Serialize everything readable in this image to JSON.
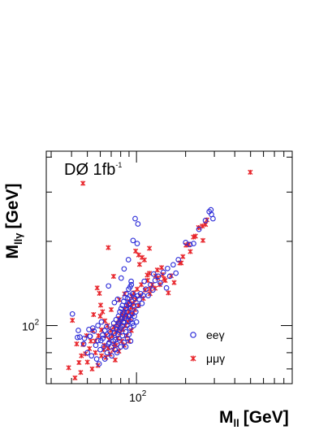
{
  "chart_data": {
    "type": "scatter",
    "title": "",
    "annotation": {
      "text": "DØ 1fb",
      "superscript": "-1"
    },
    "xlabel": {
      "main": "M",
      "sub": "ll",
      "unit": "[GeV]"
    },
    "ylabel": {
      "main": "M",
      "sub": "llγ",
      "unit": "[GeV]"
    },
    "xscale": "log",
    "yscale": "log",
    "xlim": [
      28,
      900
    ],
    "ylim": [
      62,
      420
    ],
    "xticks": [
      {
        "value": 100,
        "base": "10",
        "exp": "2"
      }
    ],
    "yticks": [
      {
        "value": 100,
        "base": "10",
        "exp": "2"
      }
    ],
    "grid": false,
    "legend_position": "lower-right",
    "colors": {
      "ee": "#2a2ad8",
      "mm": "#e8262c",
      "axis": "#000000"
    },
    "series": [
      {
        "name": "eeγ",
        "marker": "open-circle",
        "color": "#2a2ad8",
        "points": [
          [
            40.5,
            110.0
          ],
          [
            44.0,
            96.1
          ],
          [
            51.1,
            96.8
          ],
          [
            51.8,
            91.5
          ],
          [
            62.3,
            90.0
          ],
          [
            67.4,
            138.5
          ],
          [
            73.2,
            120.9
          ],
          [
            76.6,
            124.2
          ],
          [
            80.6,
            147.8
          ],
          [
            84.0,
            159.4
          ],
          [
            89.2,
            171.9
          ],
          [
            91.4,
            137.4
          ],
          [
            92.8,
            143.9
          ],
          [
            95.3,
            201.4
          ],
          [
            98.1,
            241.0
          ],
          [
            101.0,
            196.4
          ],
          [
            101.5,
            127.7
          ],
          [
            102.0,
            230.8
          ],
          [
            111.5,
            143.9
          ],
          [
            127.4,
            152.9
          ],
          [
            152.7,
            136.3
          ],
          [
            174.4,
            154.0
          ],
          [
            180.5,
            171.9
          ],
          [
            200.0,
            198.0
          ],
          [
            212.5,
            194.8
          ],
          [
            223.8,
            196.4
          ],
          [
            241.5,
            220.9
          ],
          [
            264.7,
            237.4
          ],
          [
            278.8,
            255.3
          ],
          [
            285.7,
            259.3
          ],
          [
            294.4,
            241.0
          ],
          [
            288.0,
            249.4
          ],
          [
            43.5,
            90.7
          ],
          [
            48.0,
            90.0
          ],
          [
            52.0,
            91.5
          ],
          [
            54.0,
            98.0
          ],
          [
            56.3,
            85.0
          ],
          [
            58.0,
            88.4
          ],
          [
            60.5,
            88.4
          ],
          [
            62.0,
            92.5
          ],
          [
            64.0,
            96.0
          ],
          [
            65.6,
            99.0
          ],
          [
            66.0,
            93.0
          ],
          [
            67.5,
            86.0
          ],
          [
            69.0,
            95.0
          ],
          [
            70.5,
            91.0
          ],
          [
            71.5,
            98.0
          ],
          [
            72.5,
            102.0
          ],
          [
            73.5,
            94.0
          ],
          [
            74.0,
            89.0
          ],
          [
            75.0,
            105.0
          ],
          [
            75.5,
            97.0
          ],
          [
            76.5,
            100.0
          ],
          [
            77.0,
            93.0
          ],
          [
            77.5,
            108.0
          ],
          [
            78.0,
            102.0
          ],
          [
            78.5,
            96.0
          ],
          [
            79.0,
            112.0
          ],
          [
            79.5,
            104.0
          ],
          [
            80.0,
            98.0
          ],
          [
            80.5,
            115.0
          ],
          [
            81.0,
            106.0
          ],
          [
            81.5,
            100.0
          ],
          [
            82.0,
            118.0
          ],
          [
            82.5,
            110.0
          ],
          [
            83.0,
            103.0
          ],
          [
            83.5,
            122.0
          ],
          [
            84.0,
            112.0
          ],
          [
            84.5,
            106.0
          ],
          [
            85.0,
            126.0
          ],
          [
            85.5,
            115.0
          ],
          [
            86.0,
            108.0
          ],
          [
            86.5,
            130.0
          ],
          [
            87.0,
            118.0
          ],
          [
            87.5,
            100.0
          ],
          [
            88.0,
            125.0
          ],
          [
            88.5,
            112.0
          ],
          [
            89.0,
            104.0
          ],
          [
            89.5,
            135.0
          ],
          [
            90.0,
            120.0
          ],
          [
            90.5,
            108.0
          ],
          [
            91.0,
            98.0
          ],
          [
            91.5,
            128.0
          ],
          [
            92.0,
            115.0
          ],
          [
            92.5,
            105.0
          ],
          [
            93.0,
            140.0
          ],
          [
            93.5,
            122.0
          ],
          [
            94.0,
            110.0
          ],
          [
            94.5,
            102.0
          ],
          [
            95.0,
            130.0
          ],
          [
            96.0,
            118.0
          ],
          [
            97.0,
            108.0
          ],
          [
            98.0,
            125.0
          ],
          [
            99.0,
            112.0
          ],
          [
            100.0,
            103.0
          ],
          [
            102.0,
            118.0
          ],
          [
            104.0,
            124.0
          ],
          [
            106.0,
            130.0
          ],
          [
            108.0,
            120.0
          ],
          [
            110.0,
            128.0
          ],
          [
            114.0,
            135.0
          ],
          [
            118.0,
            128.0
          ],
          [
            122.0,
            140.0
          ],
          [
            126.0,
            134.0
          ],
          [
            130.0,
            145.0
          ],
          [
            136.0,
            150.0
          ],
          [
            140.0,
            142.0
          ],
          [
            146.0,
            155.0
          ],
          [
            155.0,
            160.0
          ],
          [
            160.0,
            150.0
          ],
          [
            168.0,
            165.0
          ],
          [
            60.0,
            82.0
          ],
          [
            63.0,
            84.0
          ],
          [
            66.0,
            80.0
          ],
          [
            68.0,
            87.0
          ],
          [
            70.0,
            84.0
          ],
          [
            72.0,
            88.0
          ],
          [
            74.0,
            82.0
          ],
          [
            76.0,
            86.0
          ],
          [
            78.0,
            90.0
          ],
          [
            80.0,
            84.0
          ],
          [
            82.0,
            92.0
          ],
          [
            84.0,
            87.0
          ],
          [
            86.0,
            95.0
          ],
          [
            88.0,
            90.0
          ],
          [
            90.0,
            93.0
          ],
          [
            55.0,
            95.5
          ],
          [
            58.0,
            100.0
          ],
          [
            61.0,
            103.0
          ],
          [
            45.0,
            91.0
          ],
          [
            47.5,
            86.0
          ],
          [
            50.0,
            80.0
          ],
          [
            53.0,
            78.0
          ],
          [
            57.0,
            76.0
          ],
          [
            59.0,
            73.0
          ],
          [
            64.0,
            76.0
          ],
          [
            70.5,
            78.0
          ],
          [
            76.0,
            80.0
          ],
          [
            86.0,
            84.0
          ],
          [
            92.0,
            88.0
          ],
          [
            96.0,
            100.0
          ]
        ]
      },
      {
        "name": "μμγ",
        "marker": "asterisk",
        "color": "#e8262c",
        "points": [
          [
            38.4,
            70.7
          ],
          [
            40.5,
            104.4
          ],
          [
            44.4,
            73.8
          ],
          [
            47.0,
            85.6
          ],
          [
            48.7,
            79.3
          ],
          [
            51.5,
            82.7
          ],
          [
            54.6,
            109.5
          ],
          [
            57.4,
            136.3
          ],
          [
            59.3,
            130.4
          ],
          [
            60.3,
            118.3
          ],
          [
            62.0,
            112.1
          ],
          [
            67.2,
            190.0
          ],
          [
            72.4,
            149.9
          ],
          [
            74.0,
            75.3
          ],
          [
            78.5,
            123.6
          ],
          [
            84.6,
            129.8
          ],
          [
            98.8,
            184.6
          ],
          [
            103.1,
            178.8
          ],
          [
            104.4,
            165.4
          ],
          [
            108.2,
            175.2
          ],
          [
            111.8,
            171.6
          ],
          [
            116.4,
            151.5
          ],
          [
            120.1,
            188.8
          ],
          [
            121.4,
            135.2
          ],
          [
            131.1,
            150.6
          ],
          [
            134.1,
            158.1
          ],
          [
            142.5,
            161.1
          ],
          [
            147.3,
            146.9
          ],
          [
            156.8,
            130.9
          ],
          [
            163.2,
            150.6
          ],
          [
            170.0,
            142.5
          ],
          [
            184.3,
            167.4
          ],
          [
            187.9,
            167.4
          ],
          [
            192.4,
            176.4
          ],
          [
            201.2,
            193.8
          ],
          [
            209.0,
            195.3
          ],
          [
            213.5,
            183.9
          ],
          [
            223.4,
            207.2
          ],
          [
            229.7,
            208.8
          ],
          [
            240.0,
            223.9
          ],
          [
            253.0,
            226.9
          ],
          [
            255.3,
            201.5
          ],
          [
            265.0,
            229.7
          ],
          [
            270.0,
            238.7
          ],
          [
            47.0,
            322.4
          ],
          [
            498.0,
            353.1
          ],
          [
            120.0,
            153.8
          ],
          [
            54.0,
            96.0
          ],
          [
            56.0,
            88.0
          ],
          [
            58.5,
            92.0
          ],
          [
            61.0,
            96.5
          ],
          [
            63.5,
            85.0
          ],
          [
            65.0,
            92.0
          ],
          [
            66.5,
            100.0
          ],
          [
            68.0,
            89.0
          ],
          [
            69.5,
            96.0
          ],
          [
            71.0,
            92.0
          ],
          [
            72.5,
            99.0
          ],
          [
            73.0,
            86.0
          ],
          [
            74.5,
            95.0
          ],
          [
            75.5,
            102.0
          ],
          [
            76.5,
            90.0
          ],
          [
            77.5,
            98.0
          ],
          [
            78.5,
            106.0
          ],
          [
            79.5,
            94.0
          ],
          [
            80.5,
            102.0
          ],
          [
            81.5,
            110.0
          ],
          [
            82.5,
            97.0
          ],
          [
            83.5,
            106.0
          ],
          [
            84.5,
            114.0
          ],
          [
            85.5,
            100.0
          ],
          [
            86.5,
            109.0
          ],
          [
            87.5,
            118.0
          ],
          [
            88.5,
            103.0
          ],
          [
            89.5,
            112.0
          ],
          [
            90.5,
            122.0
          ],
          [
            91.5,
            106.0
          ],
          [
            92.5,
            116.0
          ],
          [
            93.5,
            127.0
          ],
          [
            94.5,
            110.0
          ],
          [
            95.5,
            120.0
          ],
          [
            96.5,
            131.0
          ],
          [
            97.5,
            114.0
          ],
          [
            99.0,
            124.0
          ],
          [
            101.0,
            135.0
          ],
          [
            103.0,
            118.0
          ],
          [
            105.0,
            128.0
          ],
          [
            107.0,
            140.0
          ],
          [
            110.0,
            125.0
          ],
          [
            113.0,
            134.0
          ],
          [
            117.0,
            145.0
          ],
          [
            121.0,
            130.0
          ],
          [
            125.0,
            140.0
          ],
          [
            130.0,
            136.0
          ],
          [
            135.0,
            148.0
          ],
          [
            139.0,
            140.0
          ],
          [
            144.0,
            152.0
          ],
          [
            150.0,
            145.0
          ],
          [
            43.0,
            86.0
          ],
          [
            46.0,
            78.0
          ],
          [
            49.5,
            92.0
          ],
          [
            52.5,
            88.0
          ],
          [
            42.0,
            65.0
          ],
          [
            45.5,
            68.0
          ],
          [
            50.0,
            74.0
          ],
          [
            53.5,
            70.0
          ],
          [
            56.0,
            80.0
          ],
          [
            58.0,
            72.0
          ],
          [
            61.0,
            78.0
          ],
          [
            63.0,
            82.0
          ],
          [
            65.0,
            77.0
          ],
          [
            67.0,
            83.0
          ],
          [
            69.0,
            79.0
          ],
          [
            72.0,
            82.0
          ],
          [
            75.0,
            85.0
          ],
          [
            78.0,
            81.0
          ],
          [
            81.0,
            88.0
          ],
          [
            84.0,
            85.0
          ],
          [
            87.0,
            92.0
          ],
          [
            90.0,
            88.0
          ],
          [
            93.0,
            96.0
          ],
          [
            60.0,
            108.0
          ],
          [
            64.0,
            104.0
          ],
          [
            70.0,
            114.0
          ]
        ]
      }
    ]
  }
}
